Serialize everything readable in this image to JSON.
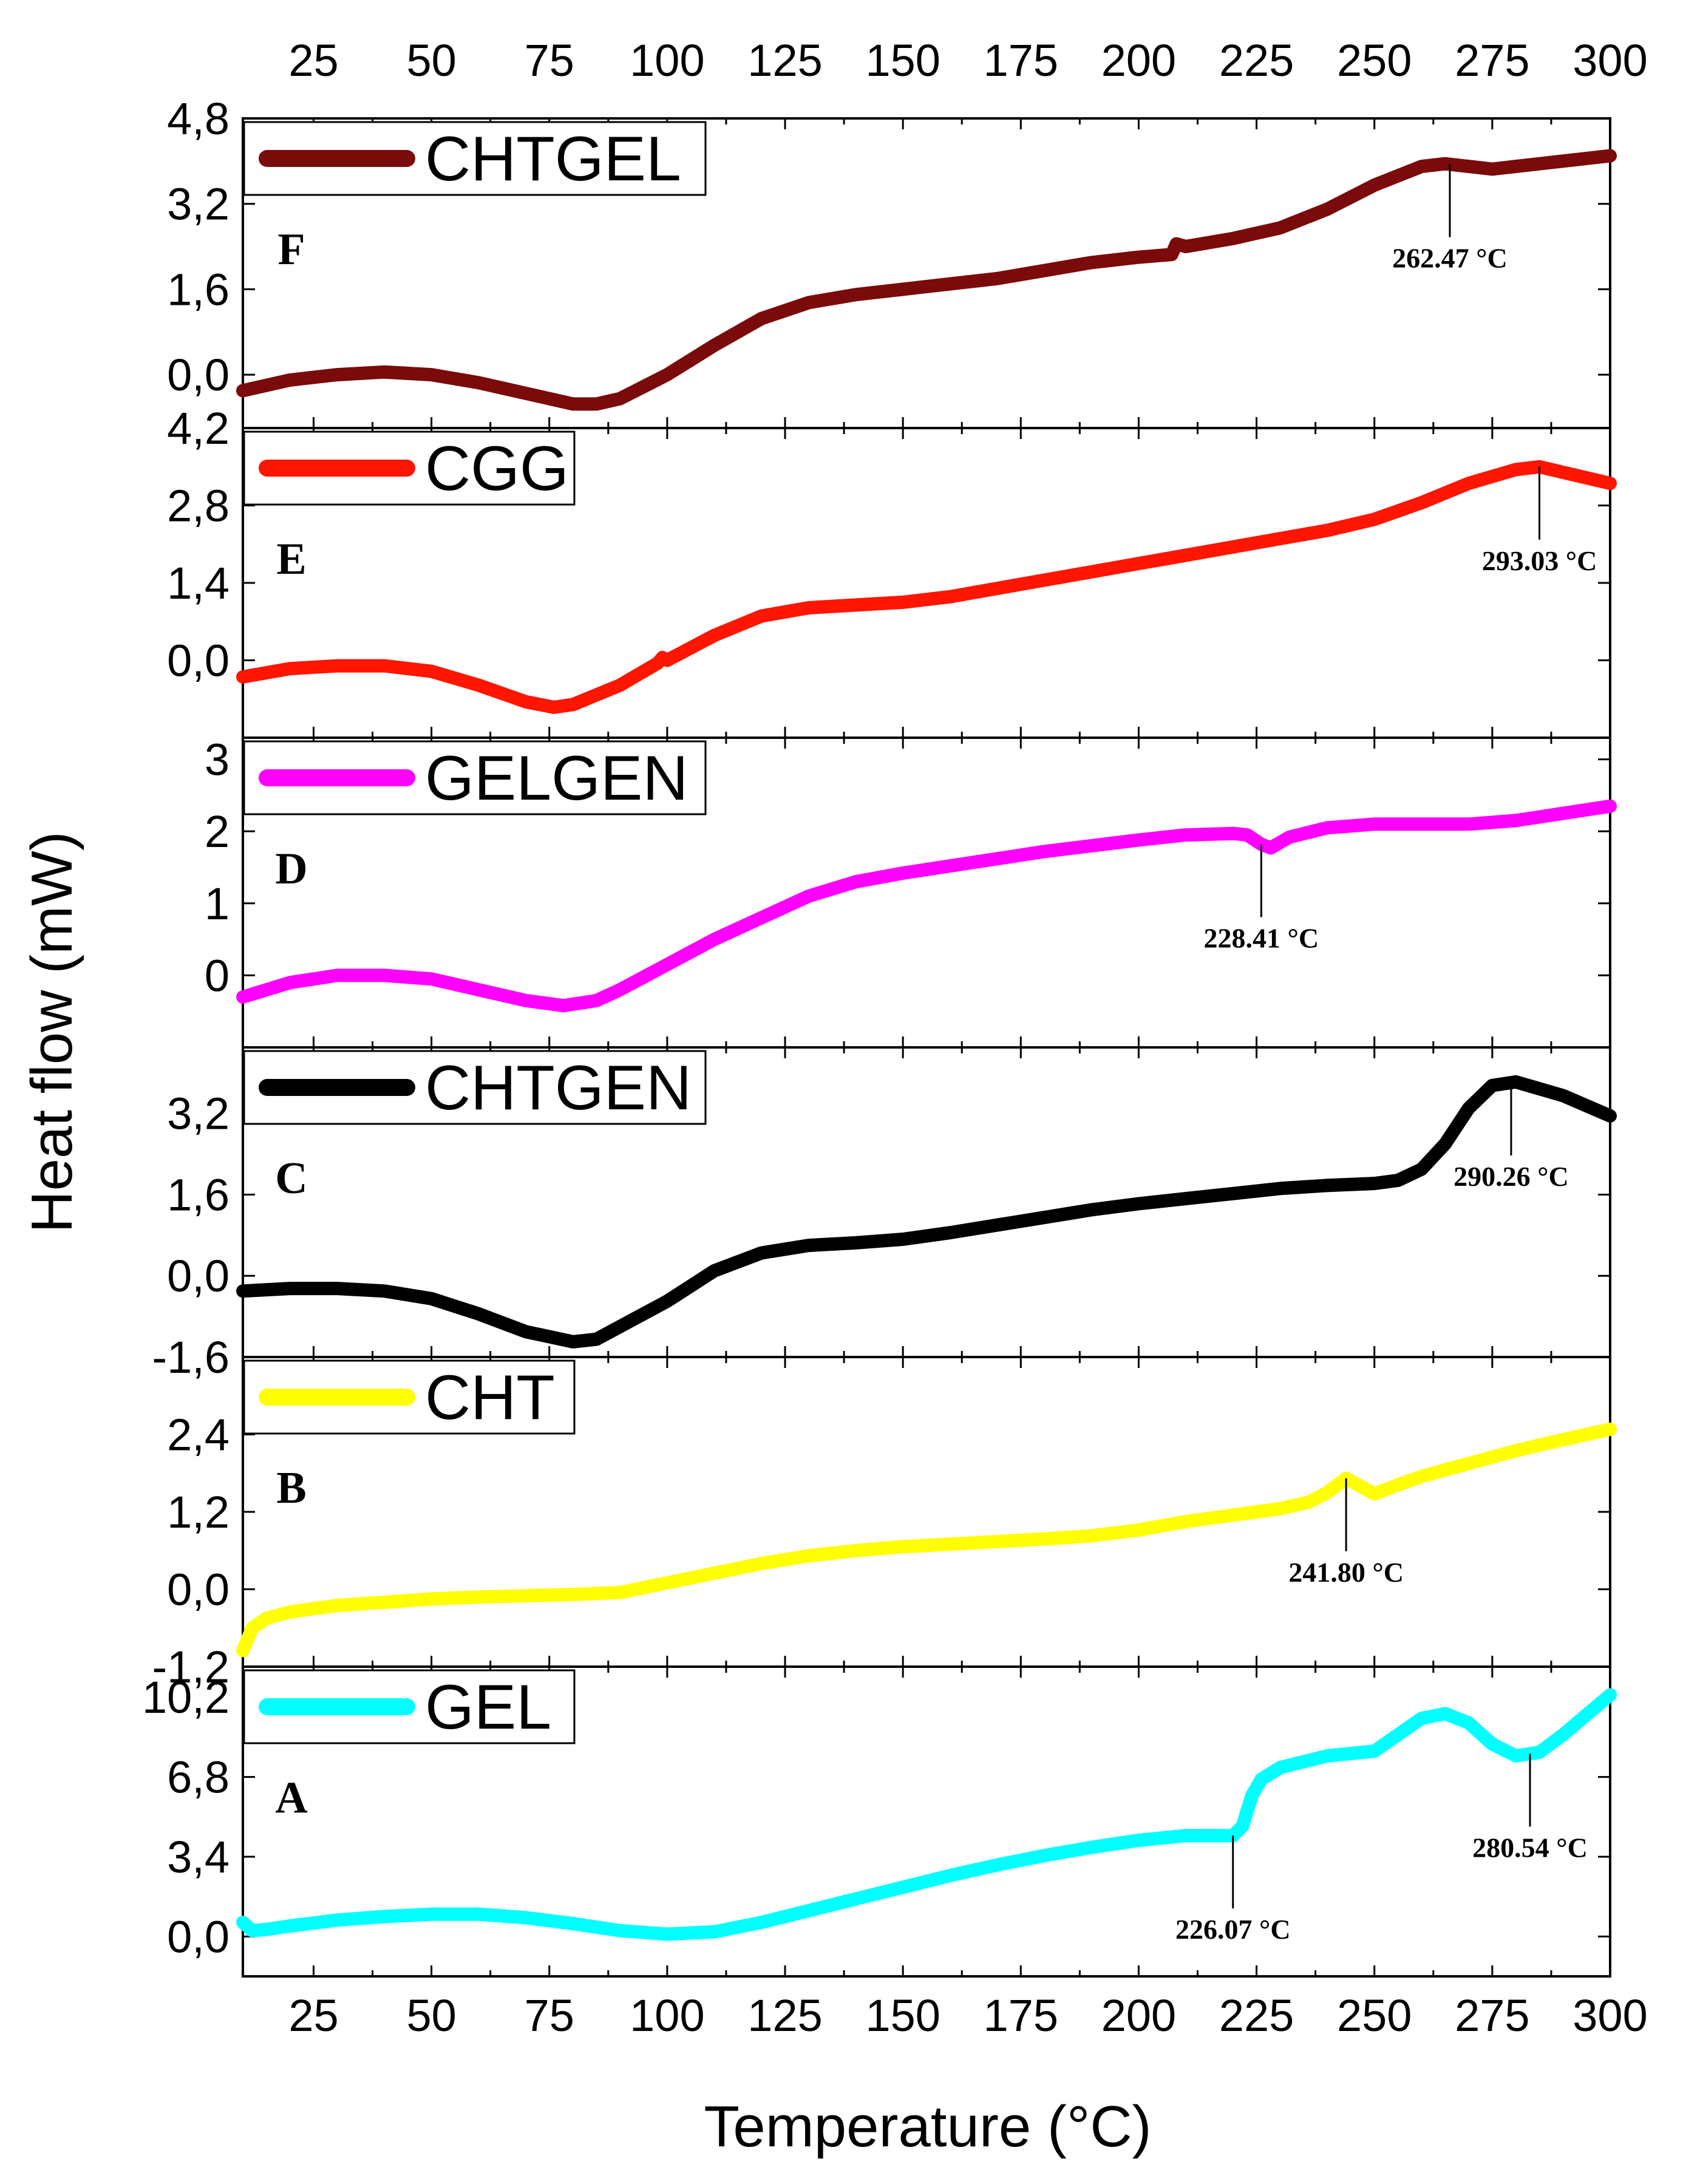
{
  "chart_data": {
    "type": "line",
    "title": "",
    "xlabel": "Temperature (°C)",
    "ylabel": "Heat flow (mW)",
    "xlim": [
      10,
      300
    ],
    "x_ticks": [
      "25",
      "50",
      "75",
      "100",
      "125",
      "150",
      "175",
      "200",
      "225",
      "250",
      "275",
      "300"
    ],
    "panels": [
      {
        "letter": "F",
        "legend": "CHTGEL",
        "color": "#7b0a0a",
        "ylim": [
          -1.0,
          4.8
        ],
        "y_ticks": [
          "0,0",
          "1,6",
          "3,2",
          "4,8"
        ],
        "x": [
          10,
          20,
          30,
          40,
          50,
          60,
          70,
          80,
          85,
          90,
          100,
          110,
          120,
          130,
          140,
          150,
          160,
          170,
          180,
          190,
          200,
          207,
          208,
          210,
          220,
          230,
          240,
          250,
          260,
          265,
          270,
          275,
          280,
          290,
          300
        ],
        "y": [
          -0.3,
          -0.1,
          0.0,
          0.05,
          0.0,
          -0.15,
          -0.35,
          -0.55,
          -0.55,
          -0.45,
          0.0,
          0.55,
          1.05,
          1.35,
          1.5,
          1.6,
          1.7,
          1.8,
          1.95,
          2.1,
          2.2,
          2.25,
          2.45,
          2.4,
          2.55,
          2.75,
          3.1,
          3.55,
          3.9,
          3.95,
          3.9,
          3.85,
          3.9,
          4.0,
          4.1
        ],
        "annotations": [
          {
            "x": 266,
            "label": "262.47 °C"
          }
        ]
      },
      {
        "letter": "E",
        "legend": "CGG",
        "color": "#ff1500",
        "ylim": [
          -1.4,
          4.2
        ],
        "y_ticks": [
          "0,0",
          "1,4",
          "2,8",
          "4,2"
        ],
        "x": [
          10,
          20,
          30,
          40,
          50,
          60,
          70,
          76,
          80,
          90,
          98,
          99,
          100,
          110,
          120,
          130,
          140,
          150,
          160,
          170,
          180,
          190,
          200,
          210,
          220,
          230,
          240,
          250,
          260,
          270,
          280,
          285,
          290,
          300
        ],
        "y": [
          -0.3,
          -0.15,
          -0.1,
          -0.1,
          -0.2,
          -0.45,
          -0.75,
          -0.85,
          -0.8,
          -0.45,
          -0.05,
          0.05,
          0.0,
          0.45,
          0.8,
          0.95,
          1.0,
          1.05,
          1.15,
          1.3,
          1.45,
          1.6,
          1.75,
          1.9,
          2.05,
          2.2,
          2.35,
          2.55,
          2.85,
          3.2,
          3.45,
          3.5,
          3.4,
          3.2
        ],
        "annotations": [
          {
            "x": 285,
            "label": "293.03 °C"
          }
        ]
      },
      {
        "letter": "D",
        "legend": "GELGEN",
        "color": "#ff00ff",
        "ylim": [
          -1.0,
          3.3
        ],
        "y_ticks": [
          "0",
          "1",
          "2",
          "3"
        ],
        "x": [
          10,
          20,
          30,
          40,
          50,
          60,
          70,
          78,
          85,
          90,
          100,
          110,
          120,
          130,
          140,
          150,
          160,
          170,
          180,
          190,
          200,
          210,
          220,
          223,
          226,
          228,
          232,
          240,
          250,
          260,
          270,
          280,
          290,
          300
        ],
        "y": [
          -0.3,
          -0.1,
          0.0,
          0.0,
          -0.05,
          -0.2,
          -0.35,
          -0.42,
          -0.35,
          -0.2,
          0.15,
          0.5,
          0.8,
          1.1,
          1.3,
          1.42,
          1.52,
          1.62,
          1.72,
          1.8,
          1.88,
          1.95,
          1.97,
          1.95,
          1.82,
          1.77,
          1.92,
          2.05,
          2.1,
          2.1,
          2.1,
          2.15,
          2.25,
          2.35
        ],
        "annotations": [
          {
            "x": 226,
            "label": "228.41 °C"
          }
        ]
      },
      {
        "letter": "C",
        "legend": "CHTGEN",
        "color": "#000000",
        "ylim": [
          -1.6,
          4.5
        ],
        "y_ticks": [
          "-1,6",
          "0,0",
          "1,6",
          "3,2"
        ],
        "x": [
          10,
          20,
          30,
          40,
          50,
          60,
          70,
          80,
          85,
          90,
          100,
          110,
          120,
          130,
          140,
          150,
          160,
          170,
          180,
          190,
          200,
          210,
          220,
          230,
          240,
          250,
          255,
          260,
          265,
          270,
          275,
          280,
          290,
          300
        ],
        "y": [
          -0.3,
          -0.25,
          -0.25,
          -0.3,
          -0.45,
          -0.75,
          -1.1,
          -1.3,
          -1.25,
          -1.0,
          -0.5,
          0.1,
          0.45,
          0.6,
          0.65,
          0.72,
          0.85,
          1.0,
          1.15,
          1.3,
          1.42,
          1.52,
          1.62,
          1.72,
          1.78,
          1.82,
          1.88,
          2.1,
          2.6,
          3.3,
          3.75,
          3.82,
          3.55,
          3.15
        ],
        "annotations": [
          {
            "x": 279,
            "label": "290.26 °C"
          }
        ]
      },
      {
        "letter": "B",
        "legend": "CHT",
        "color": "#ffff00",
        "ylim": [
          -1.2,
          3.6
        ],
        "y_ticks": [
          "-1,2",
          "0,0",
          "1,2",
          "2,4"
        ],
        "x": [
          10,
          12,
          15,
          20,
          30,
          40,
          50,
          60,
          70,
          80,
          90,
          100,
          110,
          120,
          130,
          140,
          150,
          160,
          170,
          180,
          190,
          200,
          210,
          220,
          230,
          236,
          240,
          244,
          247,
          250,
          255,
          260,
          270,
          280,
          290,
          300
        ],
        "y": [
          -0.95,
          -0.6,
          -0.45,
          -0.35,
          -0.25,
          -0.2,
          -0.15,
          -0.12,
          -0.1,
          -0.08,
          -0.05,
          0.1,
          0.25,
          0.4,
          0.52,
          0.6,
          0.66,
          0.7,
          0.74,
          0.78,
          0.83,
          0.92,
          1.05,
          1.15,
          1.25,
          1.35,
          1.5,
          1.72,
          1.6,
          1.48,
          1.62,
          1.75,
          1.95,
          2.15,
          2.32,
          2.48
        ],
        "annotations": [
          {
            "x": 244,
            "label": "241.80 °C"
          }
        ]
      },
      {
        "letter": "A",
        "legend": "GEL",
        "color": "#00ffff",
        "ylim": [
          -1.7,
          11.5
        ],
        "y_ticks": [
          "0,0",
          "3,4",
          "6,8",
          "10,2"
        ],
        "x": [
          10,
          12,
          15,
          20,
          30,
          40,
          50,
          60,
          70,
          80,
          90,
          100,
          110,
          120,
          130,
          140,
          150,
          160,
          170,
          180,
          190,
          200,
          210,
          220,
          222,
          224,
          226,
          230,
          240,
          250,
          255,
          260,
          265,
          270,
          275,
          280,
          285,
          290,
          300
        ],
        "y": [
          0.6,
          0.25,
          0.3,
          0.45,
          0.7,
          0.85,
          0.95,
          0.95,
          0.8,
          0.55,
          0.25,
          0.1,
          0.2,
          0.6,
          1.1,
          1.6,
          2.1,
          2.6,
          3.05,
          3.45,
          3.8,
          4.1,
          4.3,
          4.3,
          4.7,
          6.0,
          6.7,
          7.2,
          7.7,
          7.9,
          8.6,
          9.3,
          9.5,
          9.1,
          8.2,
          7.7,
          7.85,
          8.6,
          10.3
        ],
        "annotations": [
          {
            "x": 220,
            "label": "226.07 °C"
          },
          {
            "x": 283,
            "label": "280.54 °C"
          }
        ]
      }
    ]
  }
}
